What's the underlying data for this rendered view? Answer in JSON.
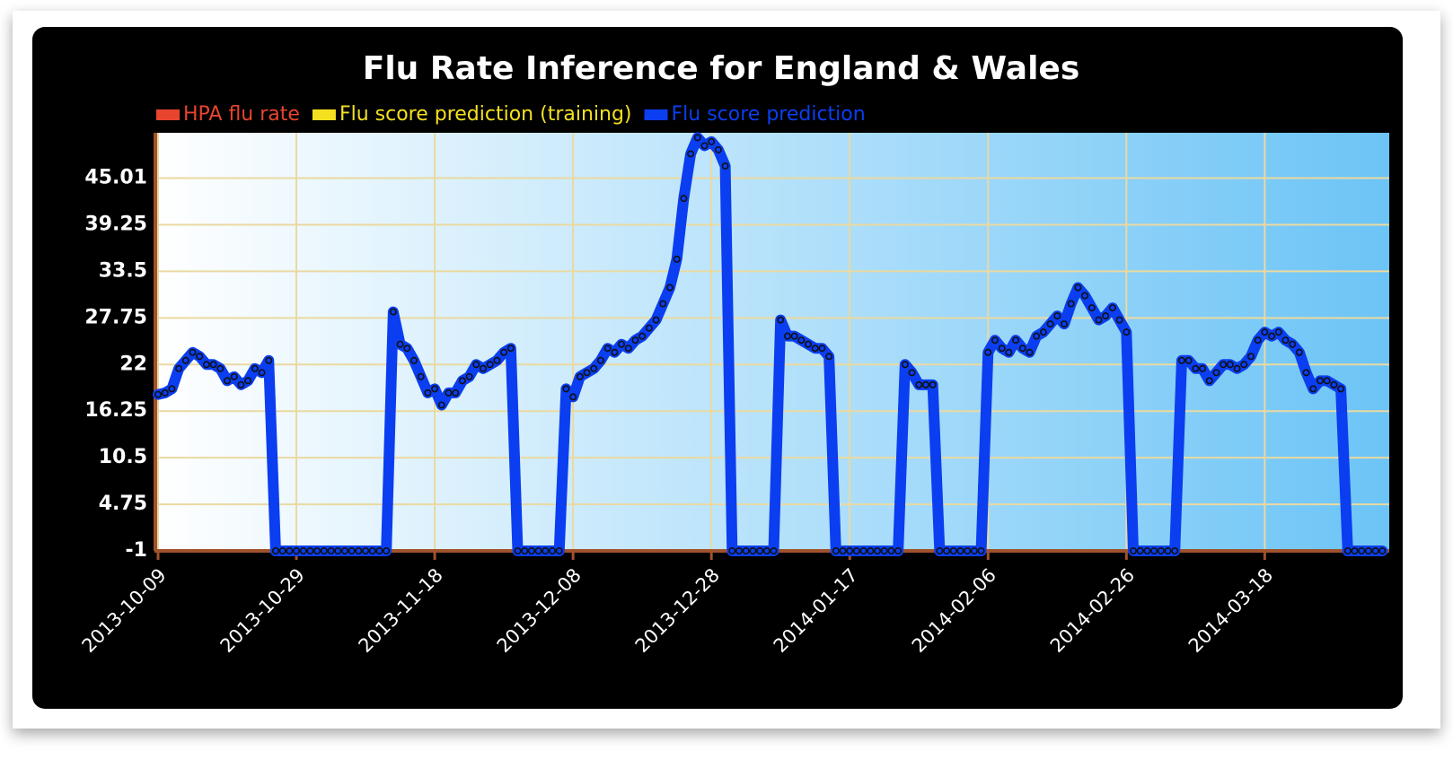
{
  "chart_data": {
    "type": "line",
    "title": "Flu Rate Inference for England & Wales",
    "x": [
      "2013-10-09",
      "2013-10-10",
      "2013-10-11",
      "2013-10-12",
      "2013-10-13",
      "2013-10-14",
      "2013-10-15",
      "2013-10-16",
      "2013-10-17",
      "2013-10-18",
      "2013-10-19",
      "2013-10-20",
      "2013-10-21",
      "2013-10-22",
      "2013-10-23",
      "2013-10-24",
      "2013-10-25",
      "2013-10-26",
      "2013-10-27",
      "2013-10-28",
      "2013-10-29",
      "2013-10-30",
      "2013-10-31",
      "2013-11-01",
      "2013-11-02",
      "2013-11-03",
      "2013-11-04",
      "2013-11-05",
      "2013-11-06",
      "2013-11-07",
      "2013-11-08",
      "2013-11-09",
      "2013-11-10",
      "2013-11-11",
      "2013-11-12",
      "2013-11-13",
      "2013-11-14",
      "2013-11-15",
      "2013-11-16",
      "2013-11-17",
      "2013-11-18",
      "2013-11-19",
      "2013-11-20",
      "2013-11-21",
      "2013-11-22",
      "2013-11-23",
      "2013-11-24",
      "2013-11-25",
      "2013-11-26",
      "2013-11-27",
      "2013-11-28",
      "2013-11-29",
      "2013-11-30",
      "2013-12-01",
      "2013-12-02",
      "2013-12-03",
      "2013-12-04",
      "2013-12-05",
      "2013-12-06",
      "2013-12-07",
      "2013-12-08",
      "2013-12-09",
      "2013-12-10",
      "2013-12-11",
      "2013-12-12",
      "2013-12-13",
      "2013-12-14",
      "2013-12-15",
      "2013-12-16",
      "2013-12-17",
      "2013-12-18",
      "2013-12-19",
      "2013-12-20",
      "2013-12-21",
      "2013-12-22",
      "2013-12-23",
      "2013-12-24",
      "2013-12-25",
      "2013-12-26",
      "2013-12-27",
      "2013-12-28",
      "2013-12-29",
      "2013-12-30",
      "2013-12-31",
      "2014-01-01",
      "2014-01-02",
      "2014-01-03",
      "2014-01-04",
      "2014-01-05",
      "2014-01-06",
      "2014-01-07",
      "2014-01-08",
      "2014-01-09",
      "2014-01-10",
      "2014-01-11",
      "2014-01-12",
      "2014-01-13",
      "2014-01-14",
      "2014-01-15",
      "2014-01-16",
      "2014-01-17",
      "2014-01-18",
      "2014-01-19",
      "2014-01-20",
      "2014-01-21",
      "2014-01-22",
      "2014-01-23",
      "2014-01-24",
      "2014-01-25",
      "2014-01-26",
      "2014-01-27",
      "2014-01-28",
      "2014-01-29",
      "2014-01-30",
      "2014-01-31",
      "2014-02-01",
      "2014-02-02",
      "2014-02-03",
      "2014-02-04",
      "2014-02-05",
      "2014-02-06",
      "2014-02-07",
      "2014-02-08",
      "2014-02-09",
      "2014-02-10",
      "2014-02-11",
      "2014-02-12",
      "2014-02-13",
      "2014-02-14",
      "2014-02-15",
      "2014-02-16",
      "2014-02-17",
      "2014-02-18",
      "2014-02-19",
      "2014-02-20",
      "2014-02-21",
      "2014-02-22",
      "2014-02-23",
      "2014-02-24",
      "2014-02-25",
      "2014-02-26",
      "2014-02-27",
      "2014-02-28",
      "2014-03-01",
      "2014-03-02",
      "2014-03-03",
      "2014-03-04",
      "2014-03-05",
      "2014-03-06",
      "2014-03-07",
      "2014-03-08",
      "2014-03-09",
      "2014-03-10",
      "2014-03-11",
      "2014-03-12",
      "2014-03-13",
      "2014-03-14",
      "2014-03-15",
      "2014-03-16",
      "2014-03-17",
      "2014-03-18",
      "2014-03-19",
      "2014-03-20",
      "2014-03-21",
      "2014-03-22",
      "2014-03-23",
      "2014-03-24",
      "2014-03-25",
      "2014-03-26",
      "2014-03-27",
      "2014-03-28",
      "2014-03-29",
      "2014-03-30",
      "2014-03-31",
      "2014-04-01",
      "2014-04-02",
      "2014-04-03",
      "2014-04-04"
    ],
    "series": [
      {
        "name": "HPA flu rate",
        "color": "#e8442e",
        "values": [
          null,
          null,
          null,
          null,
          null,
          null,
          null,
          null,
          null,
          null,
          null,
          null,
          null,
          null,
          null,
          null,
          null,
          null,
          null,
          null,
          null,
          null,
          null,
          null,
          null,
          null,
          null,
          null,
          null,
          null,
          null,
          null,
          null,
          null,
          null,
          null,
          null,
          null,
          null,
          null,
          null,
          null,
          null,
          null,
          null,
          null,
          null,
          null,
          null,
          null,
          null,
          null,
          null,
          null,
          null,
          null,
          null,
          null,
          null,
          null,
          null,
          null,
          null,
          null,
          null,
          null,
          null,
          null,
          null,
          null,
          null,
          null,
          null,
          null,
          null,
          null,
          null,
          null,
          null,
          null,
          null,
          null,
          null,
          null,
          null,
          null,
          null,
          null,
          null,
          null,
          null,
          null,
          null,
          null,
          null,
          null,
          null,
          null,
          null,
          null,
          null,
          null,
          null,
          null,
          null,
          null,
          null,
          null,
          null,
          null,
          null,
          null,
          null,
          null,
          null,
          null,
          null,
          null,
          null,
          null,
          null,
          null,
          null,
          null,
          null,
          null,
          null,
          null,
          null,
          null,
          null,
          null,
          null,
          null,
          null,
          null,
          null,
          null,
          null,
          null,
          null,
          null,
          null,
          null,
          null,
          null,
          null,
          null,
          null,
          null,
          null,
          null,
          null,
          null,
          null,
          null,
          null,
          null,
          null,
          null,
          null,
          null,
          null,
          null,
          null,
          null,
          null,
          null,
          null,
          null,
          null,
          null,
          null,
          null,
          null,
          null,
          null,
          null
        ]
      },
      {
        "name": "Flu score prediction (training)",
        "color": "#f5e020",
        "values": [
          null,
          null,
          null,
          null,
          null,
          null,
          null,
          null,
          null,
          null,
          null,
          null,
          null,
          null,
          null,
          null,
          null,
          null,
          null,
          null,
          null,
          null,
          null,
          null,
          null,
          null,
          null,
          null,
          null,
          null,
          null,
          null,
          null,
          null,
          null,
          null,
          null,
          null,
          null,
          null,
          null,
          null,
          null,
          null,
          null,
          null,
          null,
          null,
          null,
          null,
          null,
          null,
          null,
          null,
          null,
          null,
          null,
          null,
          null,
          null,
          null,
          null,
          null,
          null,
          null,
          null,
          null,
          null,
          null,
          null,
          null,
          null,
          null,
          null,
          null,
          null,
          null,
          null,
          null,
          null,
          null,
          null,
          null,
          null,
          null,
          null,
          null,
          null,
          null,
          null,
          null,
          null,
          null,
          null,
          null,
          null,
          null,
          null,
          null,
          null,
          null,
          null,
          null,
          null,
          null,
          null,
          null,
          null,
          null,
          null,
          null,
          null,
          null,
          null,
          null,
          null,
          null,
          null,
          null,
          null,
          null,
          null,
          null,
          null,
          null,
          null,
          null,
          null,
          null,
          null,
          null,
          null,
          null,
          null,
          null,
          null,
          null,
          null,
          null,
          null,
          null,
          null,
          null,
          null,
          null,
          null,
          null,
          null,
          null,
          null,
          null,
          null,
          null,
          null,
          null,
          null,
          null,
          null,
          null,
          null,
          null,
          null,
          null,
          null,
          null,
          null,
          null,
          null,
          null,
          null,
          null,
          null,
          null,
          null,
          null,
          null,
          null,
          null
        ]
      },
      {
        "name": "Flu score prediction",
        "color": "#0a3ef0",
        "values": [
          18.3,
          18.5,
          19,
          21.5,
          22.5,
          23.5,
          23,
          22,
          22,
          21.5,
          20,
          20.5,
          19.5,
          20,
          21.5,
          21,
          22.5,
          -1,
          -1,
          -1,
          -1,
          -1,
          -1,
          -1,
          -1,
          -1,
          -1,
          -1,
          -1,
          -1,
          -1,
          -1,
          -1,
          -1,
          28.5,
          24.5,
          24,
          22.5,
          20.5,
          18.5,
          19,
          17,
          18.5,
          18.5,
          20,
          20.5,
          22,
          21.5,
          22,
          22.5,
          23.5,
          24,
          -1,
          -1,
          -1,
          -1,
          -1,
          -1,
          -1,
          19,
          18,
          20.5,
          21,
          21.5,
          22.5,
          24,
          23.5,
          24.5,
          24,
          25,
          25.5,
          26.5,
          27.5,
          29.5,
          31.5,
          35,
          42.5,
          48,
          50,
          49,
          49.5,
          48.5,
          46.5,
          -1,
          -1,
          -1,
          -1,
          -1,
          -1,
          -1,
          27.5,
          25.5,
          25.5,
          25,
          24.5,
          24,
          24,
          23,
          -1,
          -1,
          -1,
          -1,
          -1,
          -1,
          -1,
          -1,
          -1,
          -1,
          22,
          21,
          19.5,
          19.5,
          19.5,
          -1,
          -1,
          -1,
          -1,
          -1,
          -1,
          -1,
          23.5,
          25,
          24,
          23.5,
          25,
          24,
          23.5,
          25.5,
          26,
          27,
          28,
          27,
          29.5,
          31.5,
          30.5,
          29,
          27.5,
          28,
          29,
          27.5,
          26,
          -1,
          -1,
          -1,
          -1,
          -1,
          -1,
          -1,
          22.5,
          22.5,
          21.5,
          21.5,
          20,
          21,
          22,
          22,
          21.5,
          22,
          23,
          25,
          26,
          25.5,
          26,
          25,
          24.5,
          23.5,
          21,
          19,
          20,
          20,
          19.5,
          19,
          -1,
          -1,
          -1,
          -1,
          -1,
          -1
        ]
      }
    ],
    "xlim": [
      "2013-10-09",
      "2014-04-05"
    ],
    "xticks": [
      "2013-10-09",
      "2013-10-29",
      "2013-11-18",
      "2013-12-08",
      "2013-12-28",
      "2014-01-17",
      "2014-02-06",
      "2014-02-26",
      "2014-03-18"
    ],
    "ylim": [
      -1,
      50.6
    ],
    "yticks": [
      -1,
      4.75,
      10.5,
      16.25,
      22,
      27.75,
      33.5,
      39.25,
      45.01
    ],
    "grid": true,
    "legend": "top-left"
  }
}
